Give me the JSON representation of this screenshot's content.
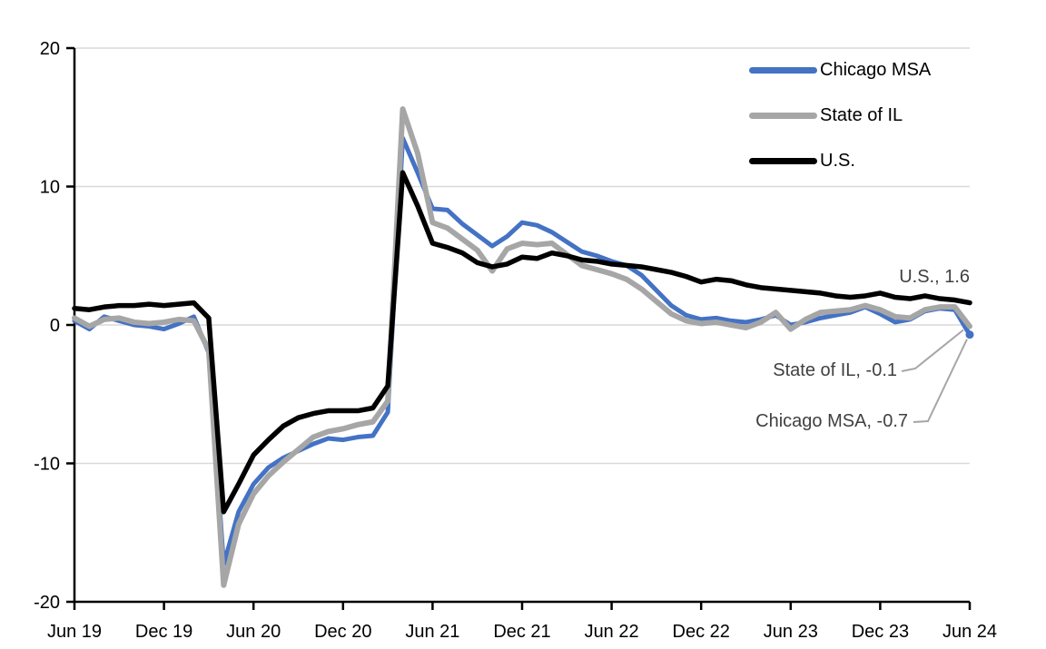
{
  "chart_data": {
    "type": "line",
    "title": "",
    "xlabel": "",
    "ylabel": "",
    "ylim": [
      -20,
      20
    ],
    "grid": "horizontal-light-gray",
    "legend_position": "top-right",
    "colors": {
      "gridline": "#D9D9D9",
      "axis": "#000000",
      "tick_label": "#000000",
      "annotation_text": "#404040",
      "leader_line": "#A6A6A6"
    },
    "y_tick_labels": [
      "20",
      "10",
      "0",
      "-10",
      "-20"
    ],
    "y_ticks": [
      20,
      10,
      0,
      -10,
      -20
    ],
    "x_tick_labels": [
      "Jun 19",
      "Dec 19",
      "Jun 20",
      "Dec 20",
      "Jun 21",
      "Dec 21",
      "Jun 22",
      "Dec 22",
      "Jun 23",
      "Dec 23",
      "Jun 24"
    ],
    "months": [
      "Jun 19",
      "Jul 19",
      "Aug 19",
      "Sep 19",
      "Oct 19",
      "Nov 19",
      "Dec 19",
      "Jan 20",
      "Feb 20",
      "Mar 20",
      "Apr 20",
      "May 20",
      "Jun 20",
      "Jul 20",
      "Aug 20",
      "Sep 20",
      "Oct 20",
      "Nov 20",
      "Dec 20",
      "Jan 21",
      "Feb 21",
      "Mar 21",
      "Apr 21",
      "May 21",
      "Jun 21",
      "Jul 21",
      "Aug 21",
      "Sep 21",
      "Oct 21",
      "Nov 21",
      "Dec 21",
      "Jan 22",
      "Feb 22",
      "Mar 22",
      "Apr 22",
      "May 22",
      "Jun 22",
      "Jul 22",
      "Aug 22",
      "Sep 22",
      "Oct 22",
      "Nov 22",
      "Dec 22",
      "Jan 23",
      "Feb 23",
      "Mar 23",
      "Apr 23",
      "May 23",
      "Jun 23",
      "Jul 23",
      "Aug 23",
      "Sep 23",
      "Oct 23",
      "Nov 23",
      "Dec 23",
      "Jan 24",
      "Feb 24",
      "Mar 24",
      "Apr 24",
      "May 24",
      "Jun 24"
    ],
    "series": [
      {
        "name": "Chicago MSA",
        "color": "#4472C4",
        "values": [
          0.3,
          -0.3,
          0.6,
          0.3,
          0.0,
          -0.1,
          -0.3,
          0.1,
          0.6,
          -2.0,
          -17.3,
          -13.5,
          -11.5,
          -10.3,
          -9.6,
          -9.1,
          -8.6,
          -8.2,
          -8.3,
          -8.1,
          -8.0,
          -6.3,
          13.5,
          11.0,
          8.4,
          8.3,
          7.3,
          6.5,
          5.7,
          6.4,
          7.4,
          7.2,
          6.7,
          6.0,
          5.3,
          5.0,
          4.6,
          4.3,
          3.6,
          2.5,
          1.4,
          0.7,
          0.4,
          0.5,
          0.3,
          0.2,
          0.4,
          0.7,
          0.0,
          0.2,
          0.5,
          0.7,
          0.9,
          1.3,
          0.8,
          0.2,
          0.4,
          1.0,
          1.2,
          1.1,
          -0.7
        ]
      },
      {
        "name": "State of IL",
        "color": "#A6A6A6",
        "values": [
          0.5,
          -0.1,
          0.4,
          0.5,
          0.2,
          0.1,
          0.2,
          0.4,
          0.3,
          -1.8,
          -18.8,
          -14.4,
          -12.2,
          -10.9,
          -9.9,
          -9.0,
          -8.1,
          -7.7,
          -7.5,
          -7.2,
          -7.0,
          -5.5,
          15.6,
          12.4,
          7.4,
          7.0,
          6.2,
          5.4,
          3.9,
          5.5,
          5.9,
          5.8,
          5.9,
          5.1,
          4.3,
          4.0,
          3.7,
          3.3,
          2.6,
          1.7,
          0.8,
          0.3,
          0.1,
          0.2,
          0.0,
          -0.2,
          0.2,
          0.9,
          -0.3,
          0.4,
          0.9,
          1.0,
          1.1,
          1.4,
          1.1,
          0.6,
          0.5,
          1.1,
          1.3,
          1.3,
          -0.1
        ]
      },
      {
        "name": "U.S.",
        "color": "#000000",
        "values": [
          1.2,
          1.1,
          1.3,
          1.4,
          1.4,
          1.5,
          1.4,
          1.5,
          1.6,
          0.5,
          -13.5,
          -11.5,
          -9.4,
          -8.3,
          -7.3,
          -6.7,
          -6.4,
          -6.2,
          -6.2,
          -6.2,
          -6.0,
          -4.4,
          11.0,
          8.6,
          5.9,
          5.6,
          5.2,
          4.5,
          4.2,
          4.4,
          4.9,
          4.8,
          5.2,
          5.0,
          4.7,
          4.6,
          4.4,
          4.3,
          4.2,
          4.0,
          3.8,
          3.5,
          3.1,
          3.3,
          3.2,
          2.9,
          2.7,
          2.6,
          2.5,
          2.4,
          2.3,
          2.1,
          2.0,
          2.1,
          2.3,
          2.0,
          1.9,
          2.1,
          1.9,
          1.8,
          1.6
        ]
      }
    ],
    "annotations": [
      {
        "series": "U.S.",
        "value": 1.6,
        "text": "U.S., 1.6"
      },
      {
        "series": "State of IL",
        "value": -0.1,
        "text": "State of IL, -0.1"
      },
      {
        "series": "Chicago MSA",
        "value": -0.7,
        "text": "Chicago MSA, -0.7"
      }
    ]
  }
}
